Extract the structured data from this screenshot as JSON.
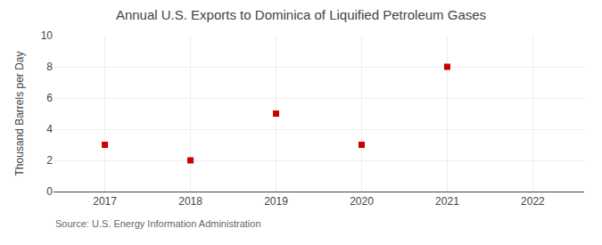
{
  "chart_data": {
    "type": "scatter",
    "title": "Annual U.S. Exports to Dominica of Liquified Petroleum Gases",
    "ylabel": "Thousand Barrels per Day",
    "annotations": [
      "Source: U.S. Energy Information Administration"
    ],
    "x": [
      2017,
      2018,
      2019,
      2020,
      2021
    ],
    "values": [
      3,
      2,
      5,
      3,
      8
    ],
    "xlim": [
      2016.4,
      2022.6
    ],
    "ylim": [
      0,
      10
    ],
    "xticks": [
      2017,
      2018,
      2019,
      2020,
      2021,
      2022
    ],
    "yticks": [
      0,
      2,
      4,
      6,
      8,
      10
    ],
    "color": "#CC0000",
    "marker": "square",
    "grid": true
  }
}
